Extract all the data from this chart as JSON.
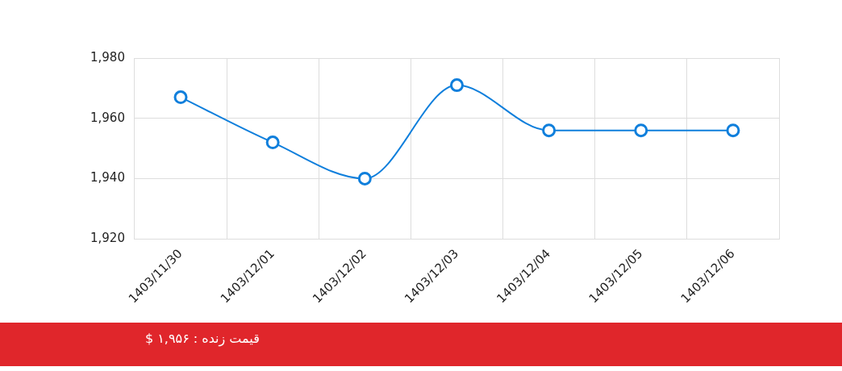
{
  "chart_data": {
    "type": "line",
    "categories": [
      "1403/11/30",
      "1403/12/01",
      "1403/12/02",
      "1403/12/03",
      "1403/12/04",
      "1403/12/05",
      "1403/12/06"
    ],
    "series": [
      {
        "color": "#0f7fdc",
        "values": [
          1967,
          1952,
          1940,
          1971,
          1956,
          1956,
          1956
        ]
      }
    ],
    "ylim": [
      1920,
      1980
    ],
    "yticks": [
      {
        "value": 1920,
        "label": "1,920"
      },
      {
        "value": 1940,
        "label": "1,940"
      },
      {
        "value": 1960,
        "label": "1,960"
      },
      {
        "value": 1980,
        "label": "1,980"
      }
    ],
    "grid": true,
    "legend": false,
    "marker": "circle",
    "line_style": "solid",
    "annotations": [
      "قیمت زنده : ۱,۹۵۶ $"
    ]
  }
}
